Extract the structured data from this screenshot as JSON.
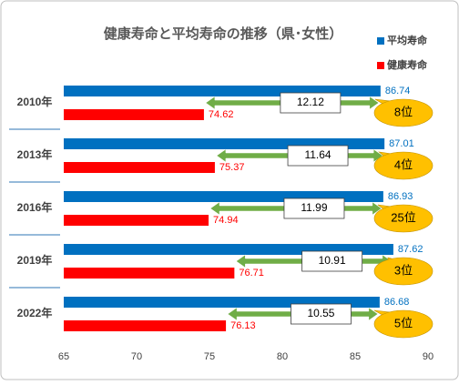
{
  "chart_data": {
    "type": "bar",
    "orientation": "horizontal",
    "title": "健康寿命と平均寿命の推移（県･女性）",
    "categories": [
      "2010年",
      "2013年",
      "2016年",
      "2019年",
      "2022年"
    ],
    "series": [
      {
        "name": "平均寿命",
        "color": "#0070c0",
        "values": [
          86.74,
          87.01,
          86.93,
          87.62,
          86.68
        ]
      },
      {
        "name": "健康寿命",
        "color": "#ff0000",
        "values": [
          74.62,
          75.37,
          74.94,
          76.71,
          76.13
        ]
      }
    ],
    "differences": [
      12.12,
      11.64,
      11.99,
      10.91,
      10.55
    ],
    "difference_color": "#70ad47",
    "ranks": [
      "8位",
      "4位",
      "25位",
      "3位",
      "5位"
    ],
    "rank_color": "#ffc000",
    "xlim": [
      65,
      90
    ],
    "xticks": [
      65,
      70,
      75,
      80,
      85,
      90
    ],
    "legend": "top-right"
  }
}
